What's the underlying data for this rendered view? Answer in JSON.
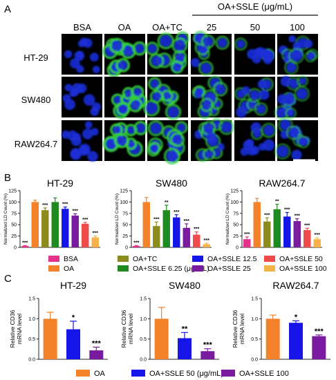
{
  "panel_labels": [
    "A",
    "B",
    "C"
  ],
  "panel_a": {
    "column_labels": [
      "BSA",
      "OA",
      "OA+TC",
      "25",
      "50",
      "100"
    ],
    "group_label": "OA+SSLE (μg/mL)",
    "row_labels": [
      "HT-29",
      "SW480",
      "RAW264.7"
    ]
  },
  "colors": {
    "BSA": "#e6318a",
    "OA": "#f4822a",
    "OA+TC": "#8c8c1c",
    "OA+SSLE 6.25": "#1f8a1f",
    "OA+SSLE 12.5": "#1515e8",
    "OA+SSLE 25": "#7a1a9e",
    "OA+SSLE 50": "#f04a4a",
    "OA+SSLE 100": "#f6b24a",
    "nucleus": "#1b2fd6",
    "lipid": "#36d336"
  },
  "chart_data": [
    {
      "type": "bar",
      "title": "HT-29",
      "ylabel": "Normalized LD Count (%)",
      "ylim": [
        0,
        125
      ],
      "yticks": [
        0,
        25,
        50,
        75,
        100,
        125
      ],
      "categories": [
        "BSA",
        "OA",
        "OA+TC",
        "OA+SSLE 6.25",
        "OA+SSLE 12.5",
        "OA+SSLE 25",
        "OA+SSLE 50",
        "OA+SSLE 100"
      ],
      "values": [
        3,
        100,
        82,
        100,
        85,
        70,
        52,
        22
      ],
      "errors": [
        1,
        4,
        5,
        9,
        4,
        4,
        3,
        3
      ],
      "significance": [
        "***",
        "",
        "***",
        "",
        "***",
        "***",
        "***",
        "***"
      ]
    },
    {
      "type": "bar",
      "title": "SW480",
      "ylabel": "Normalized LD Count (%)",
      "ylim": [
        0,
        125
      ],
      "yticks": [
        0,
        25,
        50,
        75,
        100,
        125
      ],
      "categories": [
        "BSA",
        "OA",
        "OA+TC",
        "OA+SSLE 6.25",
        "OA+SSLE 12.5",
        "OA+SSLE 25",
        "OA+SSLE 50",
        "OA+SSLE 100"
      ],
      "values": [
        3,
        100,
        47,
        82,
        66,
        43,
        28,
        7
      ],
      "errors": [
        1,
        10,
        9,
        11,
        6,
        9,
        6,
        2
      ],
      "significance": [
        "***",
        "",
        "***",
        "**",
        "***",
        "***",
        "***",
        "***"
      ]
    },
    {
      "type": "bar",
      "title": "RAW264.7",
      "ylabel": "Normalized LD Count (%)",
      "ylim": [
        0,
        125
      ],
      "yticks": [
        0,
        25,
        50,
        75,
        100,
        125
      ],
      "categories": [
        "BSA",
        "OA",
        "OA+TC",
        "OA+SSLE 6.25",
        "OA+SSLE 12.5",
        "OA+SSLE 25",
        "OA+SSLE 50",
        "OA+SSLE 100"
      ],
      "values": [
        18,
        100,
        57,
        84,
        68,
        58,
        38,
        18
      ],
      "errors": [
        5,
        8,
        8,
        11,
        9,
        5,
        4,
        3
      ],
      "significance": [
        "***",
        "",
        "***",
        "**",
        "***",
        "***",
        "***",
        "***"
      ]
    },
    {
      "type": "bar",
      "title": "HT-29",
      "ylabel": "Relative CD36 mRNA level",
      "ylim": [
        0,
        1.5
      ],
      "yticks": [
        0.0,
        0.5,
        1.0,
        1.5
      ],
      "categories": [
        "OA",
        "OA+SSLE 50",
        "OA+SSLE 100"
      ],
      "values": [
        1.0,
        0.74,
        0.22
      ],
      "errors": [
        0.16,
        0.2,
        0.08
      ],
      "significance": [
        "",
        "*",
        "***"
      ]
    },
    {
      "type": "bar",
      "title": "SW480",
      "ylabel": "Relative CD36 mRNA level",
      "ylim": [
        0,
        1.5
      ],
      "yticks": [
        0.0,
        0.5,
        1.0,
        1.5
      ],
      "categories": [
        "OA",
        "OA+SSLE 50",
        "OA+SSLE 100"
      ],
      "values": [
        1.0,
        0.52,
        0.2
      ],
      "errors": [
        0.28,
        0.14,
        0.06
      ],
      "significance": [
        "",
        "**",
        "***"
      ]
    },
    {
      "type": "bar",
      "title": "RAW264.7",
      "ylabel": "Relative CD36 mRNA level",
      "ylim": [
        0,
        1.5
      ],
      "yticks": [
        0.0,
        0.5,
        1.0,
        1.5
      ],
      "categories": [
        "OA",
        "OA+SSLE 50",
        "OA+SSLE 100"
      ],
      "values": [
        1.0,
        0.9,
        0.57
      ],
      "errors": [
        0.09,
        0.05,
        0.03
      ],
      "significance": [
        "",
        "*",
        "***"
      ]
    }
  ],
  "legend_b": [
    {
      "key": "BSA",
      "label": "BSA"
    },
    {
      "key": "OA",
      "label": "OA"
    },
    {
      "key": "OA+TC",
      "label": "OA+TC"
    },
    {
      "key": "OA+SSLE 6.25",
      "label": "OA+SSLE 6.25 (μg/mL)"
    },
    {
      "key": "OA+SSLE 12.5",
      "label": "OA+SSLE 12.5"
    },
    {
      "key": "OA+SSLE 25",
      "label": "OA+SSLE 25"
    },
    {
      "key": "OA+SSLE 50",
      "label": "OA+SSLE 50"
    },
    {
      "key": "OA+SSLE 100",
      "label": "OA+SSLE 100"
    }
  ],
  "legend_c": [
    {
      "key": "OA",
      "label": "OA"
    },
    {
      "key": "OA+SSLE 12.5",
      "label": "OA+SSLE 50 (μg/mL)"
    },
    {
      "key": "OA+SSLE 25",
      "label": "OA+SSLE 100"
    }
  ]
}
